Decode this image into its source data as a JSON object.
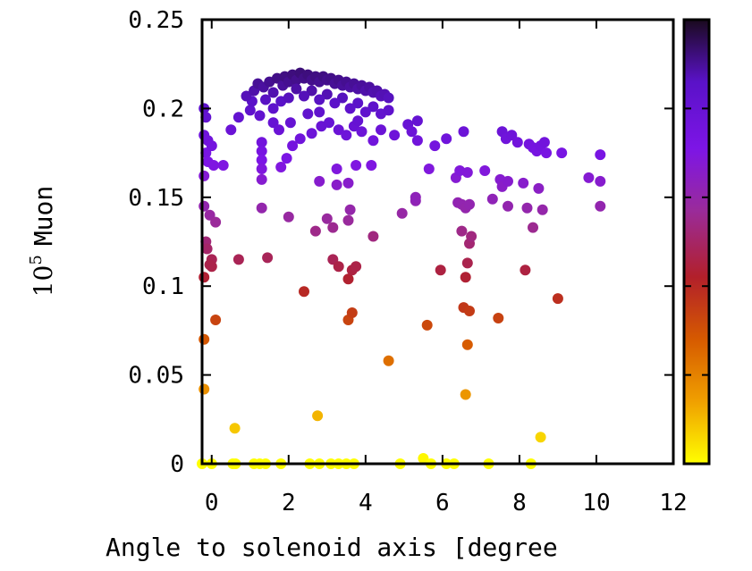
{
  "chart_data": {
    "type": "scatter",
    "title": "",
    "xlabel": "Angle to solenoid axis [degree",
    "ylabel_prefix": "10",
    "ylabel_exponent": "5",
    "ylabel_suffix": "Muon",
    "xlim": [
      -0.25,
      12
    ],
    "ylim": [
      0,
      0.25
    ],
    "x_ticks": [
      "0",
      "2",
      "4",
      "6",
      "8",
      "10",
      "12"
    ],
    "x_tick_values": [
      0,
      2,
      4,
      6,
      8,
      10,
      12
    ],
    "y_ticks": [
      "0",
      "0.05",
      "0.1",
      "0.15",
      "0.2",
      "0.25"
    ],
    "y_tick_values": [
      0,
      0.05,
      0.1,
      0.15,
      0.2,
      0.25
    ],
    "grid": false,
    "colorbar": {
      "present": true,
      "colors_bottom_to_top": [
        "#ffff00",
        "#f0a000",
        "#d65a00",
        "#b2202a",
        "#9a2b9a",
        "#7d15e6",
        "#5a12c8",
        "#1a0a1e"
      ]
    },
    "series": [
      {
        "points": [
          [
            -0.25,
            0.0
          ],
          [
            0.0,
            0.0
          ],
          [
            0.55,
            0.0
          ],
          [
            0.62,
            0.0
          ],
          [
            1.1,
            0.0
          ],
          [
            1.25,
            0.0
          ],
          [
            1.4,
            0.0
          ],
          [
            1.8,
            0.0
          ],
          [
            2.55,
            0.0
          ],
          [
            2.8,
            0.0
          ],
          [
            3.1,
            0.0
          ],
          [
            3.3,
            0.0
          ],
          [
            3.5,
            0.0
          ],
          [
            3.7,
            0.0
          ],
          [
            4.9,
            0.0
          ],
          [
            5.5,
            0.003
          ],
          [
            5.7,
            0.0
          ],
          [
            6.1,
            0.0
          ],
          [
            6.3,
            0.0
          ],
          [
            7.2,
            0.0
          ],
          [
            8.3,
            0.0
          ],
          [
            0.6,
            0.02
          ],
          [
            2.75,
            0.027
          ],
          [
            8.55,
            0.015
          ],
          [
            -0.2,
            0.042
          ],
          [
            6.6,
            0.039
          ],
          [
            -0.2,
            0.07
          ],
          [
            4.6,
            0.058
          ],
          [
            6.65,
            0.067
          ],
          [
            0.1,
            0.081
          ],
          [
            3.55,
            0.081
          ],
          [
            3.65,
            0.085
          ],
          [
            5.6,
            0.078
          ],
          [
            7.45,
            0.082
          ],
          [
            6.55,
            0.088
          ],
          [
            6.7,
            0.086
          ],
          [
            -0.2,
            0.105
          ],
          [
            0.0,
            0.115
          ],
          [
            0.0,
            0.111
          ],
          [
            -0.05,
            0.112
          ],
          [
            -0.15,
            0.125
          ],
          [
            -0.12,
            0.121
          ],
          [
            0.7,
            0.115
          ],
          [
            1.45,
            0.116
          ],
          [
            2.4,
            0.097
          ],
          [
            3.15,
            0.115
          ],
          [
            3.3,
            0.111
          ],
          [
            3.55,
            0.104
          ],
          [
            3.65,
            0.109
          ],
          [
            3.75,
            0.111
          ],
          [
            5.95,
            0.109
          ],
          [
            6.6,
            0.105
          ],
          [
            6.65,
            0.113
          ],
          [
            6.7,
            0.124
          ],
          [
            6.75,
            0.128
          ],
          [
            6.5,
            0.131
          ],
          [
            8.15,
            0.109
          ],
          [
            8.35,
            0.133
          ],
          [
            9.0,
            0.093
          ],
          [
            -0.2,
            0.145
          ],
          [
            -0.05,
            0.14
          ],
          [
            0.1,
            0.136
          ],
          [
            1.3,
            0.144
          ],
          [
            2.0,
            0.139
          ],
          [
            2.7,
            0.131
          ],
          [
            3.0,
            0.138
          ],
          [
            3.15,
            0.133
          ],
          [
            3.55,
            0.137
          ],
          [
            3.6,
            0.143
          ],
          [
            4.2,
            0.128
          ],
          [
            4.95,
            0.141
          ],
          [
            5.3,
            0.148
          ],
          [
            6.4,
            0.147
          ],
          [
            6.5,
            0.146
          ],
          [
            6.6,
            0.144
          ],
          [
            6.7,
            0.146
          ],
          [
            7.3,
            0.149
          ],
          [
            7.7,
            0.145
          ],
          [
            8.2,
            0.144
          ],
          [
            8.6,
            0.143
          ],
          [
            10.1,
            0.145
          ],
          [
            -0.2,
            0.2
          ],
          [
            -0.15,
            0.195
          ],
          [
            -0.2,
            0.185
          ],
          [
            -0.1,
            0.182
          ],
          [
            -0.15,
            0.175
          ],
          [
            -0.1,
            0.17
          ],
          [
            -0.2,
            0.162
          ],
          [
            0.05,
            0.168
          ],
          [
            0.3,
            0.168
          ],
          [
            0.0,
            0.179
          ],
          [
            1.3,
            0.181
          ],
          [
            1.3,
            0.176
          ],
          [
            1.3,
            0.171
          ],
          [
            1.3,
            0.166
          ],
          [
            1.3,
            0.16
          ],
          [
            1.8,
            0.167
          ],
          [
            1.95,
            0.172
          ],
          [
            2.1,
            0.179
          ],
          [
            2.3,
            0.183
          ],
          [
            2.6,
            0.186
          ],
          [
            2.8,
            0.159
          ],
          [
            3.25,
            0.166
          ],
          [
            3.25,
            0.157
          ],
          [
            3.55,
            0.158
          ],
          [
            3.75,
            0.168
          ],
          [
            4.15,
            0.168
          ],
          [
            5.3,
            0.15
          ],
          [
            5.65,
            0.166
          ],
          [
            6.35,
            0.161
          ],
          [
            6.45,
            0.165
          ],
          [
            6.65,
            0.164
          ],
          [
            7.1,
            0.165
          ],
          [
            7.5,
            0.16
          ],
          [
            7.55,
            0.156
          ],
          [
            7.7,
            0.159
          ],
          [
            8.1,
            0.158
          ],
          [
            8.5,
            0.155
          ],
          [
            9.8,
            0.161
          ],
          [
            10.1,
            0.159
          ],
          [
            0.5,
            0.188
          ],
          [
            0.7,
            0.195
          ],
          [
            1.0,
            0.199
          ],
          [
            1.05,
            0.204
          ],
          [
            1.25,
            0.196
          ],
          [
            1.6,
            0.192
          ],
          [
            1.75,
            0.188
          ],
          [
            2.05,
            0.192
          ],
          [
            2.5,
            0.197
          ],
          [
            2.8,
            0.198
          ],
          [
            2.85,
            0.19
          ],
          [
            3.05,
            0.192
          ],
          [
            3.3,
            0.188
          ],
          [
            3.5,
            0.185
          ],
          [
            3.7,
            0.19
          ],
          [
            3.8,
            0.193
          ],
          [
            3.9,
            0.187
          ],
          [
            4.2,
            0.182
          ],
          [
            4.4,
            0.188
          ],
          [
            4.75,
            0.185
          ],
          [
            5.1,
            0.191
          ],
          [
            5.2,
            0.187
          ],
          [
            5.35,
            0.193
          ],
          [
            5.35,
            0.182
          ],
          [
            5.8,
            0.179
          ],
          [
            6.1,
            0.183
          ],
          [
            6.55,
            0.187
          ],
          [
            7.55,
            0.187
          ],
          [
            7.65,
            0.183
          ],
          [
            7.8,
            0.185
          ],
          [
            7.95,
            0.181
          ],
          [
            8.25,
            0.18
          ],
          [
            8.35,
            0.178
          ],
          [
            8.45,
            0.176
          ],
          [
            8.55,
            0.179
          ],
          [
            8.65,
            0.181
          ],
          [
            8.7,
            0.175
          ],
          [
            9.1,
            0.175
          ],
          [
            10.1,
            0.174
          ],
          [
            0.9,
            0.207
          ],
          [
            1.1,
            0.21
          ],
          [
            1.2,
            0.214
          ],
          [
            1.35,
            0.212
          ],
          [
            1.5,
            0.215
          ],
          [
            1.6,
            0.209
          ],
          [
            1.7,
            0.217
          ],
          [
            1.85,
            0.213
          ],
          [
            1.9,
            0.218
          ],
          [
            2.0,
            0.215
          ],
          [
            2.1,
            0.219
          ],
          [
            2.2,
            0.216
          ],
          [
            2.3,
            0.22
          ],
          [
            2.4,
            0.217
          ],
          [
            2.5,
            0.219
          ],
          [
            2.6,
            0.216
          ],
          [
            2.7,
            0.218
          ],
          [
            2.8,
            0.215
          ],
          [
            2.9,
            0.218
          ],
          [
            3.0,
            0.216
          ],
          [
            3.1,
            0.217
          ],
          [
            3.2,
            0.214
          ],
          [
            3.3,
            0.216
          ],
          [
            3.4,
            0.213
          ],
          [
            3.5,
            0.215
          ],
          [
            3.6,
            0.212
          ],
          [
            3.7,
            0.214
          ],
          [
            3.8,
            0.211
          ],
          [
            3.9,
            0.213
          ],
          [
            4.0,
            0.21
          ],
          [
            4.1,
            0.212
          ],
          [
            4.2,
            0.209
          ],
          [
            4.3,
            0.21
          ],
          [
            4.4,
            0.207
          ],
          [
            4.5,
            0.208
          ],
          [
            4.6,
            0.206
          ],
          [
            1.4,
            0.205
          ],
          [
            1.8,
            0.204
          ],
          [
            2.2,
            0.211
          ],
          [
            2.6,
            0.21
          ],
          [
            3.0,
            0.208
          ],
          [
            3.4,
            0.206
          ],
          [
            3.8,
            0.203
          ],
          [
            4.2,
            0.201
          ],
          [
            1.6,
            0.2
          ],
          [
            2.0,
            0.206
          ],
          [
            2.4,
            0.207
          ],
          [
            2.8,
            0.205
          ],
          [
            3.2,
            0.203
          ],
          [
            3.6,
            0.2
          ],
          [
            4.0,
            0.198
          ],
          [
            4.4,
            0.197
          ],
          [
            4.6,
            0.199
          ]
        ]
      }
    ]
  }
}
